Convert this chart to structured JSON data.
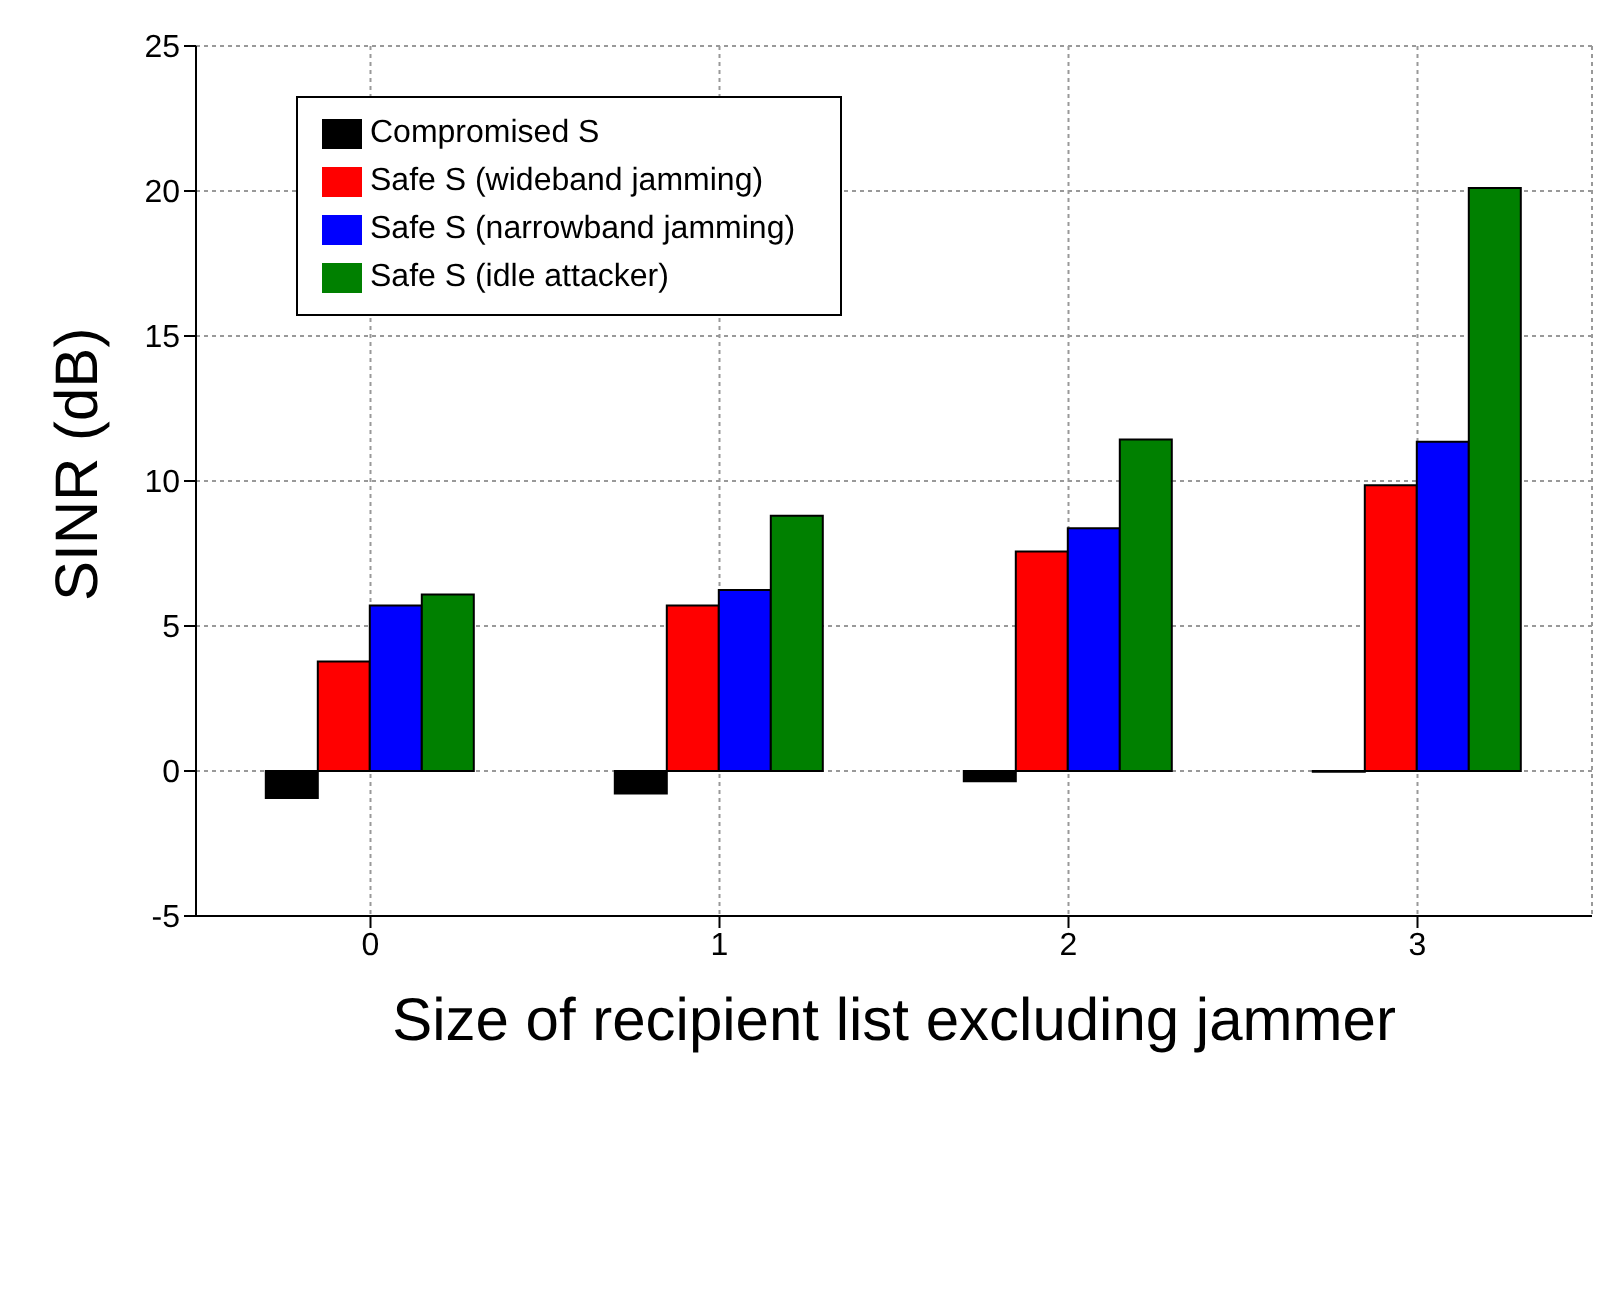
{
  "chart_data": {
    "type": "bar",
    "xlabel": "Size of recipient list excluding jammer",
    "ylabel": "SINR (dB)",
    "categories": [
      "0",
      "1",
      "2",
      "3"
    ],
    "series": [
      {
        "name": "Compromised S",
        "color": "#000000",
        "values": [
          -0.93,
          -0.78,
          -0.35,
          -0.03
        ]
      },
      {
        "name": "Safe S (wideband jamming)",
        "color": "#ff0000",
        "values": [
          3.78,
          5.71,
          7.57,
          9.85
        ]
      },
      {
        "name": "Safe S (narrowband jamming)",
        "color": "#0000ff",
        "values": [
          5.71,
          6.24,
          8.37,
          11.35
        ]
      },
      {
        "name": "Safe S (idle attacker)",
        "color": "#008000",
        "values": [
          6.09,
          8.8,
          11.43,
          20.1
        ]
      }
    ],
    "ylim": [
      -5,
      25
    ],
    "yticks": [
      -5,
      0,
      5,
      10,
      15,
      20,
      25
    ],
    "grid": true,
    "legend": "top left"
  }
}
